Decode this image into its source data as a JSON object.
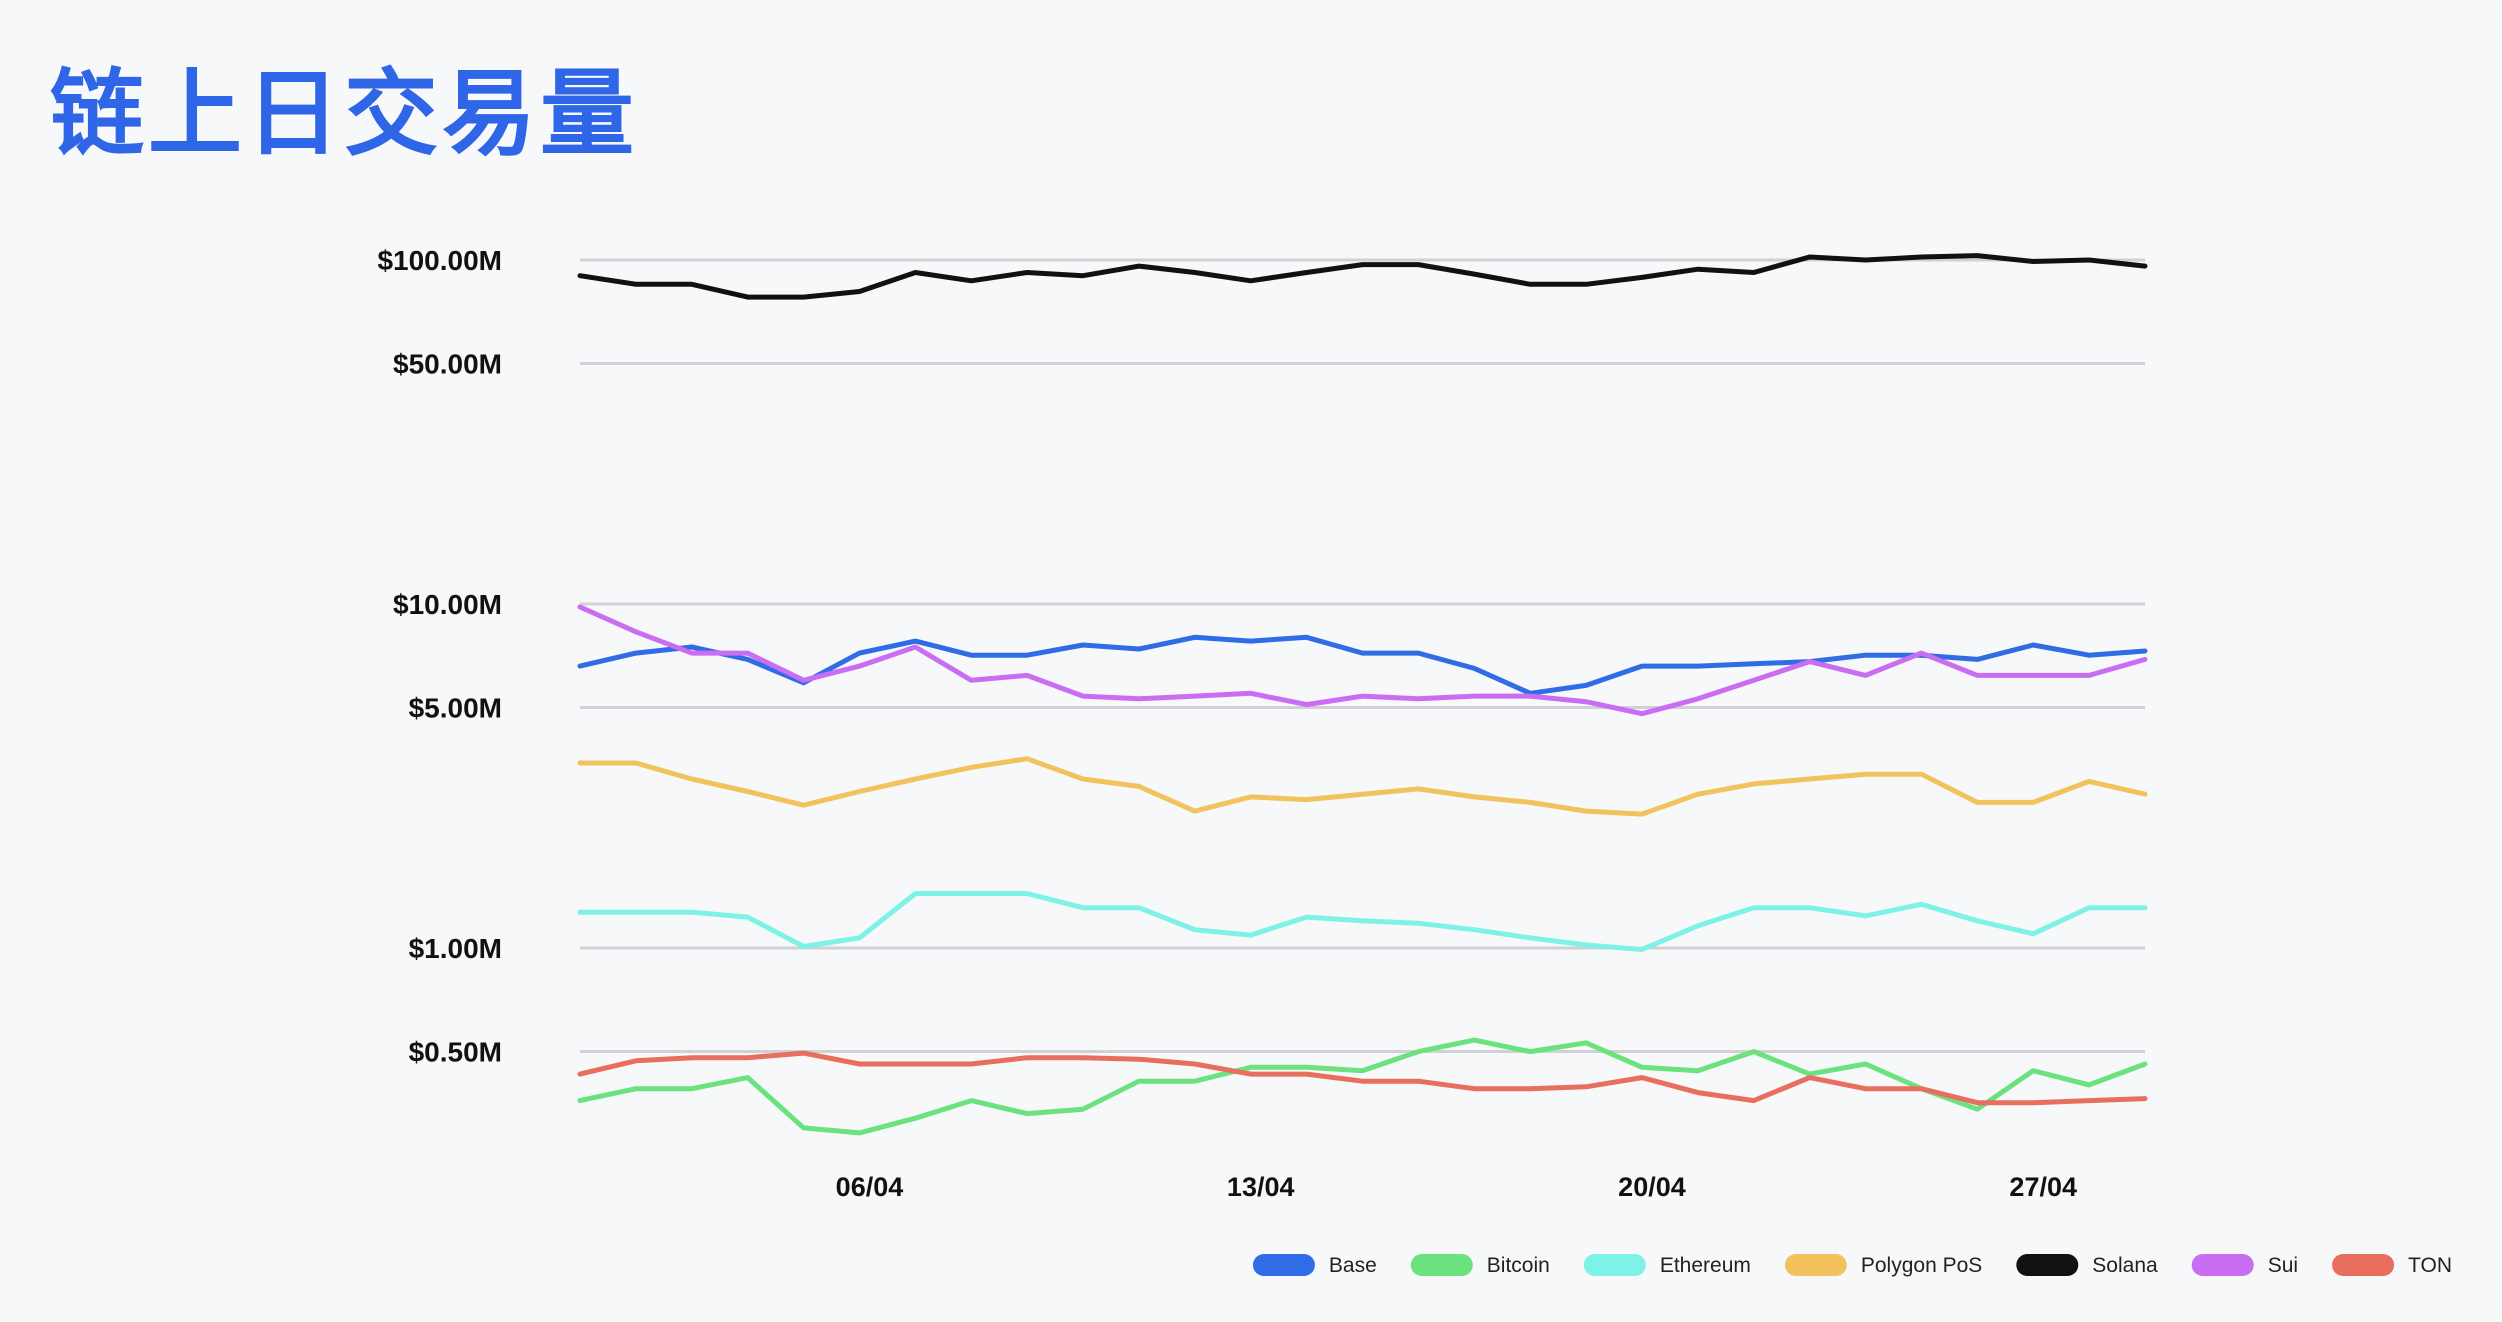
{
  "chart_data": {
    "type": "line",
    "title": "链上日交易量",
    "xlabel": "",
    "ylabel": "",
    "y_scale": "log",
    "ylim": [
      270000,
      130000000
    ],
    "y_ticks": [
      {
        "label": "$100.00M",
        "value": 100000000
      },
      {
        "label": "$50.00M",
        "value": 50000000
      },
      {
        "label": "$10.00M",
        "value": 10000000
      },
      {
        "label": "$5.00M",
        "value": 5000000
      },
      {
        "label": "$1.00M",
        "value": 1000000
      },
      {
        "label": "$0.50M",
        "value": 500000
      }
    ],
    "x": [
      "2025-04-01",
      "2025-04-02",
      "2025-04-03",
      "2025-04-04",
      "2025-04-05",
      "2025-04-06",
      "2025-04-07",
      "2025-04-08",
      "2025-04-09",
      "2025-04-10",
      "2025-04-11",
      "2025-04-12",
      "2025-04-13",
      "2025-04-14",
      "2025-04-15",
      "2025-04-16",
      "2025-04-17",
      "2025-04-18",
      "2025-04-19",
      "2025-04-20",
      "2025-04-21",
      "2025-04-22",
      "2025-04-23",
      "2025-04-24",
      "2025-04-25",
      "2025-04-26",
      "2025-04-27",
      "2025-04-28",
      "2025-04-29"
    ],
    "x_ticks": [
      {
        "label": "06/04",
        "value": "2025-04-06"
      },
      {
        "label": "13/04",
        "value": "2025-04-13"
      },
      {
        "label": "20/04",
        "value": "2025-04-20"
      },
      {
        "label": "27/04",
        "value": "2025-04-27"
      }
    ],
    "grid": true,
    "legend_position": "bottom-right",
    "series": [
      {
        "name": "Base",
        "color": "#2f6ce5",
        "values": [
          6600000.0,
          7200000.0,
          7500000.0,
          6900000.0,
          5900000.0,
          7200000.0,
          7800000.0,
          7100000.0,
          7100000.0,
          7600000.0,
          7400000.0,
          8000000.0,
          7800000.0,
          8000000.0,
          7200000.0,
          7200000.0,
          6500000.0,
          5500000.0,
          5800000.0,
          6600000.0,
          6600000.0,
          6700000.0,
          6800000.0,
          7100000.0,
          7100000.0,
          6900000.0,
          7600000.0,
          7100000.0,
          7300000.0
        ]
      },
      {
        "name": "Bitcoin",
        "color": "#6be27e",
        "values": [
          360000.0,
          390000.0,
          390000.0,
          420000.0,
          300000.0,
          290000.0,
          320000.0,
          360000.0,
          330000.0,
          340000.0,
          410000.0,
          410000.0,
          450000.0,
          450000.0,
          440000.0,
          500000.0,
          540000.0,
          500000.0,
          530000.0,
          450000.0,
          440000.0,
          500000.0,
          430000.0,
          460000.0,
          390000.0,
          340000.0,
          440000.0,
          400000.0,
          460000.0
        ]
      },
      {
        "name": "Ethereum",
        "color": "#7ff2e8",
        "values": [
          1270000.0,
          1270000.0,
          1270000.0,
          1230000.0,
          1010000.0,
          1070000.0,
          1440000.0,
          1440000.0,
          1440000.0,
          1310000.0,
          1310000.0,
          1130000.0,
          1090000.0,
          1230000.0,
          1200000.0,
          1180000.0,
          1130000.0,
          1070000.0,
          1020000.0,
          990000.0,
          1160000.0,
          1310000.0,
          1310000.0,
          1240000.0,
          1340000.0,
          1200000.0,
          1100000.0,
          1310000.0,
          1310000.0
        ]
      },
      {
        "name": "Polygon PoS",
        "color": "#f2c35c",
        "values": [
          3450000.0,
          3450000.0,
          3100000.0,
          2850000.0,
          2600000.0,
          2850000.0,
          3100000.0,
          3350000.0,
          3550000.0,
          3100000.0,
          2950000.0,
          2500000.0,
          2750000.0,
          2700000.0,
          2800000.0,
          2900000.0,
          2750000.0,
          2650000.0,
          2500000.0,
          2450000.0,
          2800000.0,
          3000000.0,
          3100000.0,
          3200000.0,
          3200000.0,
          2650000.0,
          2650000.0,
          3050000.0,
          2800000.0
        ]
      },
      {
        "name": "Solana",
        "color": "#111111",
        "values": [
          90000000.0,
          85000000.0,
          85000000.0,
          78000000.0,
          78000000.0,
          81000000.0,
          92000000.0,
          87000000.0,
          92000000.0,
          90000000.0,
          96000000.0,
          92000000.0,
          87000000.0,
          92000000.0,
          97000000.0,
          97000000.0,
          91000000.0,
          85000000.0,
          85000000.0,
          89000000.0,
          94000000.0,
          92000000.0,
          102000000.0,
          100000000.0,
          102000000.0,
          103000000.0,
          99000000.0,
          100000000.0,
          96000000.0
        ]
      },
      {
        "name": "Sui",
        "color": "#c96ef2",
        "values": [
          9800000.0,
          8300000.0,
          7200000.0,
          7200000.0,
          6000000.0,
          6600000.0,
          7500000.0,
          6000000.0,
          6200000.0,
          5400000.0,
          5300000.0,
          5400000.0,
          5500000.0,
          5100000.0,
          5400000.0,
          5300000.0,
          5400000.0,
          5400000.0,
          5200000.0,
          4800000.0,
          5300000.0,
          6000000.0,
          6800000.0,
          6200000.0,
          7200000.0,
          6200000.0,
          6200000.0,
          6200000.0,
          6900000.0
        ]
      },
      {
        "name": "TON",
        "color": "#e86e5e",
        "values": [
          430000.0,
          470000.0,
          480000.0,
          480000.0,
          495000.0,
          460000.0,
          460000.0,
          460000.0,
          480000.0,
          480000.0,
          475000.0,
          460000.0,
          430000.0,
          430000.0,
          410000.0,
          410000.0,
          390000.0,
          390000.0,
          395000.0,
          420000.0,
          380000.0,
          360000.0,
          420000.0,
          390000.0,
          390000.0,
          355000.0,
          355000.0,
          360000.0,
          365000.0
        ]
      }
    ]
  }
}
